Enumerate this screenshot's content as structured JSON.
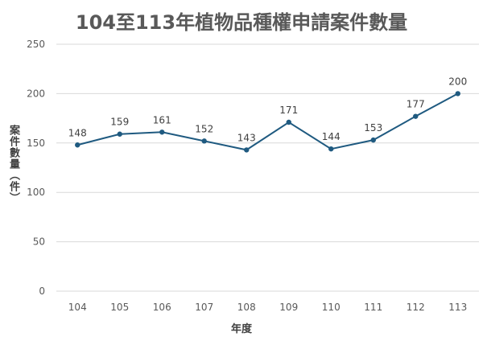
{
  "chart_data": {
    "type": "line",
    "title": "104至113年植物品種權申請案件數量",
    "xlabel": "年度",
    "ylabel": "案件數量（件）",
    "categories": [
      "104",
      "105",
      "106",
      "107",
      "108",
      "109",
      "110",
      "111",
      "112",
      "113"
    ],
    "series": [
      {
        "values": [
          148,
          159,
          161,
          152,
          143,
          171,
          144,
          153,
          177,
          200
        ]
      }
    ],
    "ylim": [
      0,
      250
    ],
    "yticks": [
      0,
      50,
      100,
      150,
      200,
      250
    ],
    "grid": true,
    "legend": "none",
    "colors": {
      "line": "#1f5a80",
      "grid": "#d9d9d9"
    }
  }
}
